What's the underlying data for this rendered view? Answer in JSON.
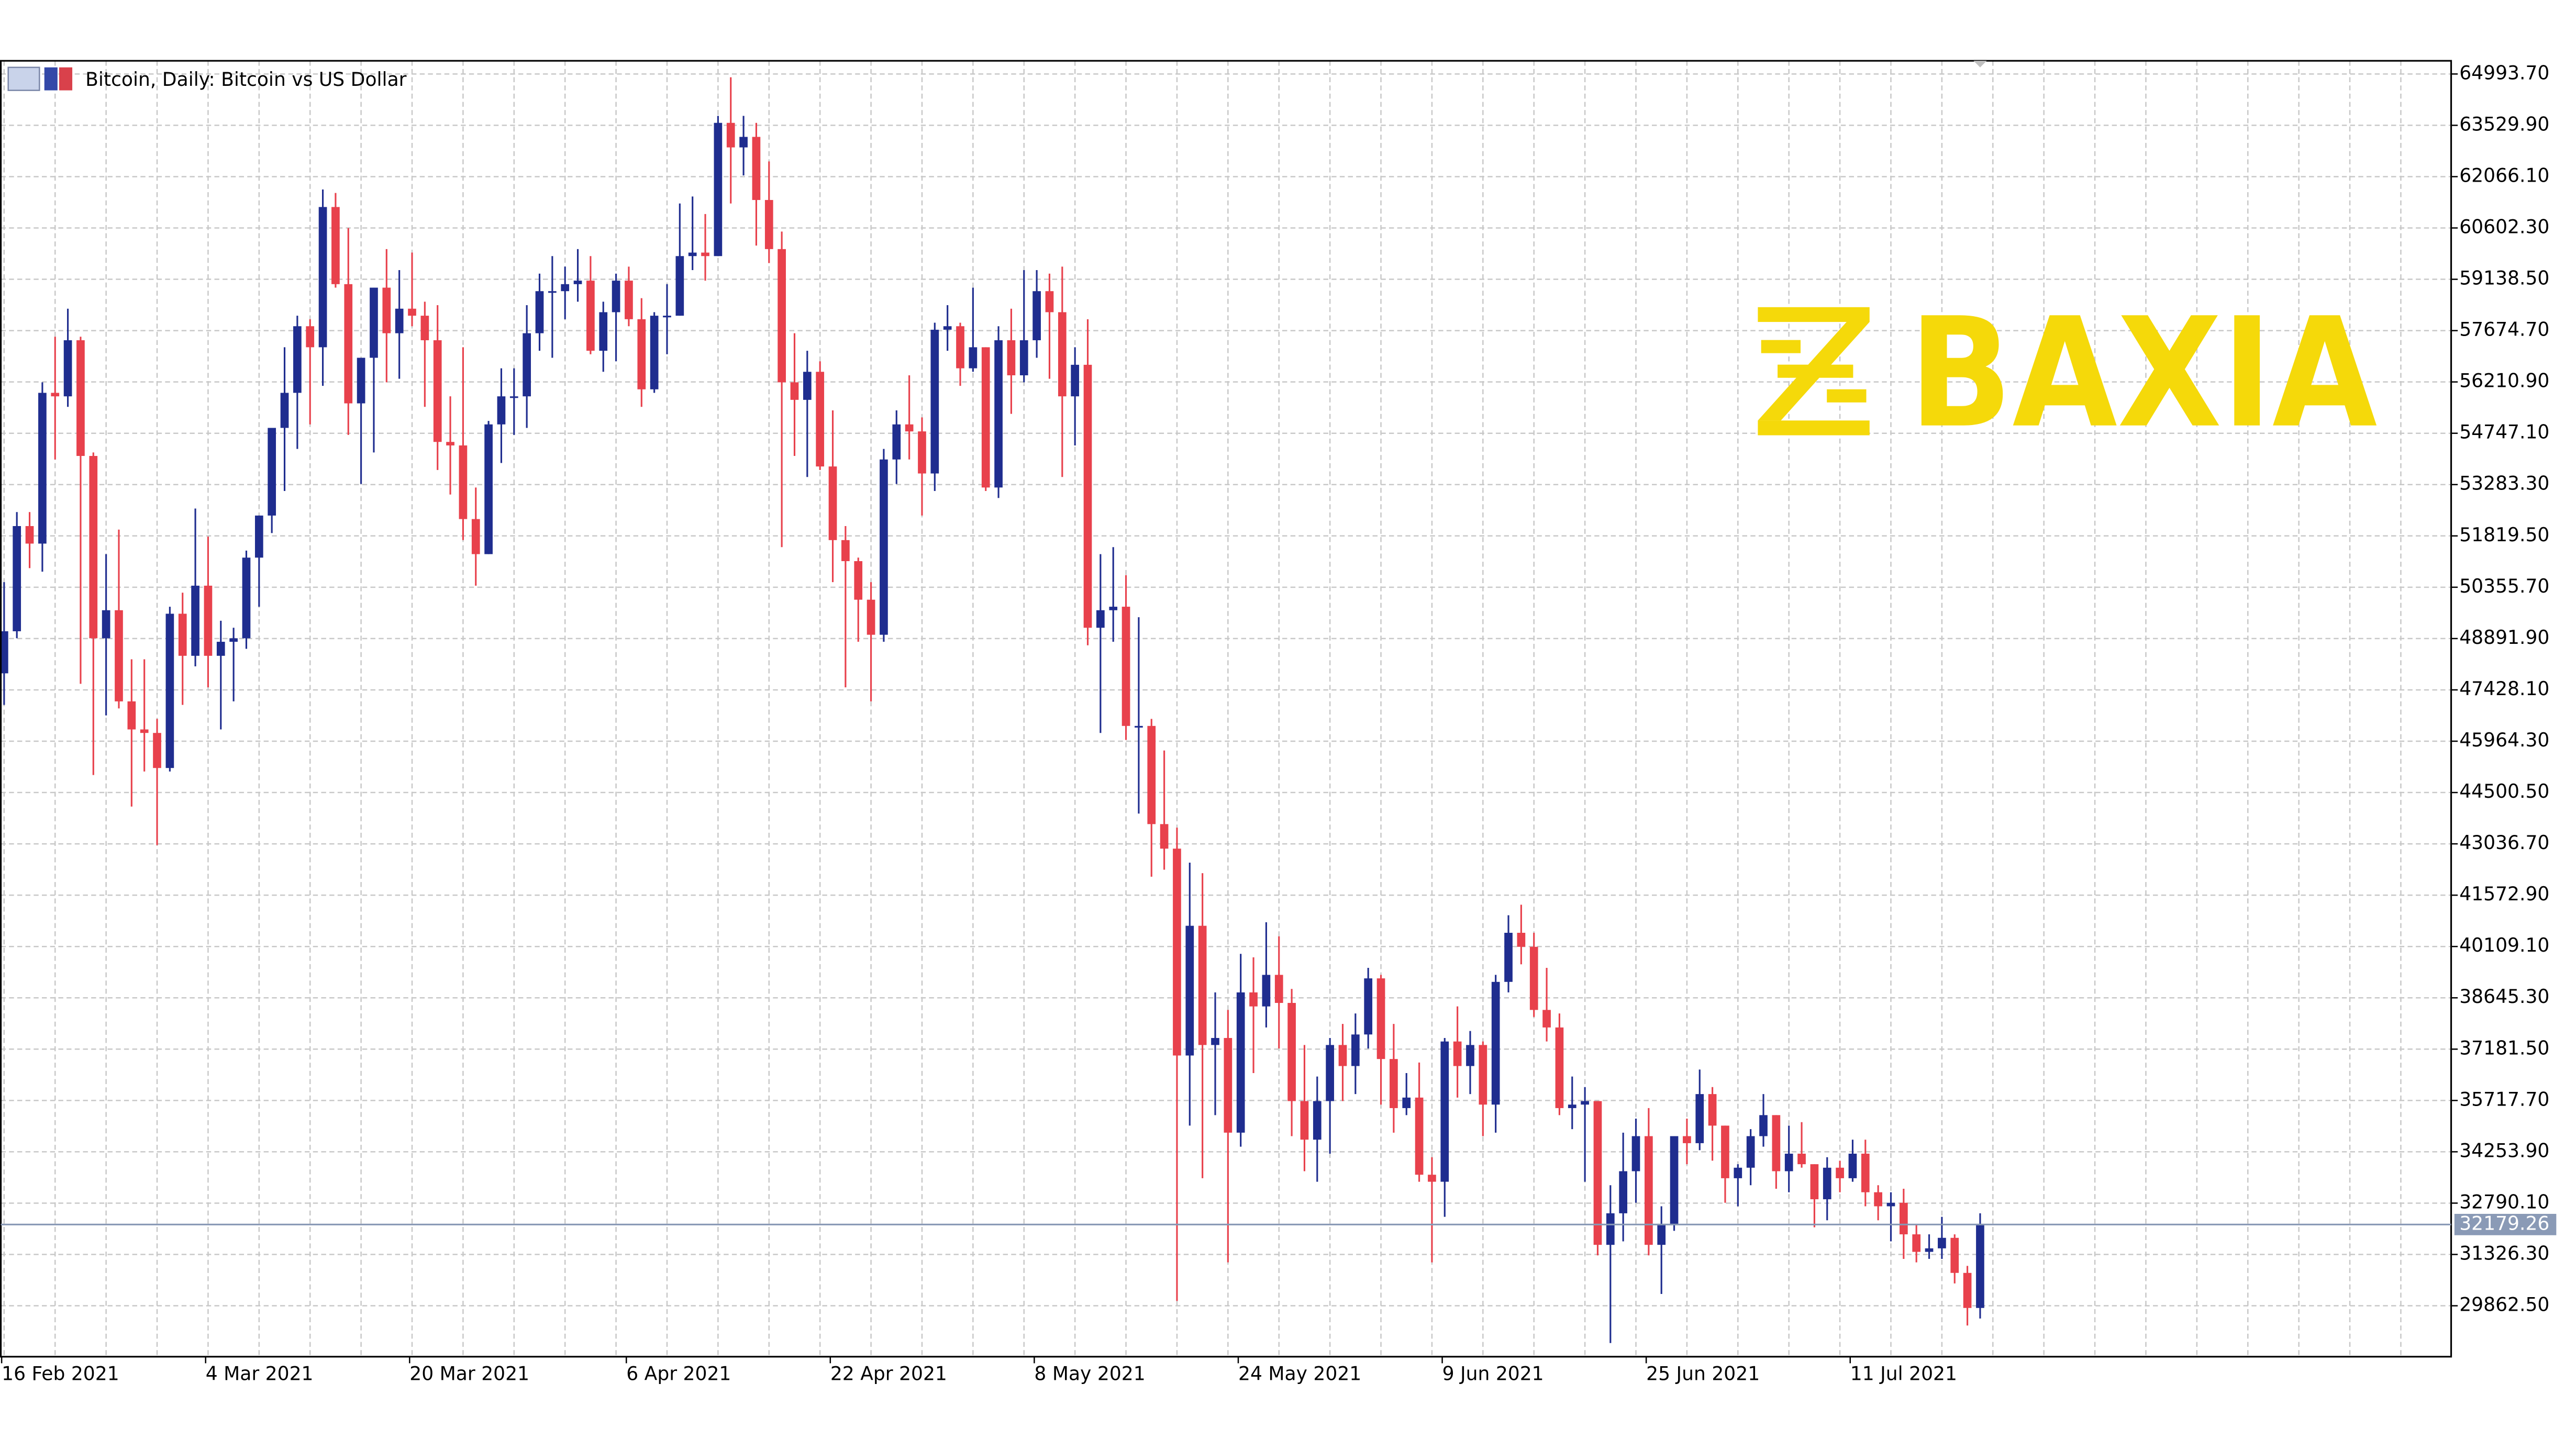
{
  "logo": "BAXIA",
  "chart_data": {
    "type": "candlestick",
    "title": "Bitcoin, Daily:  Bitcoin vs US Dollar",
    "up_color": "#1f2d8f",
    "down_color": "#e8414c",
    "grid": true,
    "categories": [
      "16 Feb 2021",
      null,
      null,
      null,
      null,
      null,
      null,
      null,
      null,
      null,
      null,
      null,
      null,
      null,
      null,
      null,
      "4 Mar 2021",
      null,
      null,
      null,
      null,
      null,
      null,
      null,
      null,
      null,
      null,
      null,
      null,
      null,
      null,
      null,
      "20 Mar 2021",
      null,
      null,
      null,
      null,
      null,
      null,
      null,
      null,
      null,
      null,
      null,
      null,
      null,
      null,
      null,
      null,
      "6 Apr 2021",
      null,
      null,
      null,
      null,
      null,
      null,
      null,
      null,
      null,
      null,
      null,
      null,
      null,
      null,
      null,
      "22 Apr 2021",
      null,
      null,
      null,
      null,
      null,
      null,
      null,
      null,
      null,
      null,
      null,
      null,
      null,
      null,
      null,
      "8 May 2021",
      null,
      null,
      null,
      null,
      null,
      null,
      null,
      null,
      null,
      null,
      null,
      null,
      null,
      null,
      null,
      "24 May 2021",
      null,
      null,
      null,
      null,
      null,
      null,
      null,
      null,
      null,
      null,
      null,
      null,
      null,
      null,
      null,
      "9 Jun 2021",
      null,
      null,
      null,
      null,
      null,
      null,
      null,
      null,
      null,
      null,
      null,
      null,
      null,
      null,
      null,
      "25 Jun 2021",
      null,
      null,
      null,
      null,
      null,
      null,
      null,
      null,
      null,
      null,
      null,
      null,
      null,
      null,
      null,
      "11 Jul 2021",
      null,
      null,
      null,
      null,
      null,
      null,
      null,
      null,
      null,
      null
    ],
    "open": [
      47900,
      49100,
      52100,
      51600,
      55900,
      55800,
      57400,
      54100,
      48900,
      49700,
      47100,
      46300,
      46200,
      45200,
      49600,
      48400,
      50400,
      48400,
      48800,
      48900,
      51200,
      52400,
      54900,
      55900,
      57800,
      57200,
      61200,
      59000,
      55600,
      56900,
      58900,
      57600,
      58300,
      58100,
      57400,
      54500,
      54400,
      52300,
      51300,
      55000,
      55800,
      55800,
      57600,
      58800,
      58800,
      59000,
      59100,
      57100,
      58200,
      59100,
      58000,
      56000,
      58100,
      58100,
      59800,
      59900,
      59800,
      63600,
      62900,
      63200,
      61400,
      60000,
      56200,
      55700,
      56500,
      53800,
      51700,
      51100,
      50000,
      49000,
      54000,
      55000,
      54800,
      53600,
      57700,
      57800,
      56600,
      57200,
      53200,
      57400,
      56400,
      57400,
      58800,
      58200,
      55800,
      56700,
      49200,
      49700,
      49800,
      46400,
      46400,
      43600,
      42900,
      37000,
      40700,
      37300,
      37500,
      34800,
      38800,
      38400,
      39300,
      38500,
      35700,
      34600,
      35700,
      37300,
      36700,
      37600,
      39200,
      36900,
      35500,
      35800,
      33600,
      33400,
      37400,
      36700,
      37300,
      35600,
      39100,
      40500,
      40100,
      38300,
      37800,
      35500,
      35600,
      35700,
      31600,
      32500,
      33700,
      34700,
      31600,
      32200,
      34700,
      34500,
      35900,
      35000,
      33500,
      33800,
      34700,
      35300,
      33700,
      34200,
      33900,
      32900,
      33800,
      33500,
      34200,
      33100,
      32700,
      32800,
      31900,
      31400,
      31500,
      31800,
      30800,
      29800
    ],
    "high": [
      50500,
      52500,
      52500,
      56200,
      57500,
      58300,
      57500,
      54200,
      51300,
      52000,
      48300,
      48300,
      46600,
      49800,
      50200,
      52600,
      51800,
      49400,
      49200,
      51400,
      52400,
      54900,
      57200,
      58100,
      58000,
      61700,
      61600,
      60600,
      56900,
      58900,
      60000,
      59400,
      59900,
      58500,
      58400,
      55800,
      57200,
      53200,
      55100,
      56600,
      56600,
      58400,
      59300,
      59800,
      59500,
      60000,
      59800,
      58500,
      59300,
      59500,
      58600,
      58200,
      59000,
      61300,
      61500,
      61000,
      63800,
      64900,
      63800,
      63600,
      62500,
      60500,
      57600,
      57100,
      56800,
      55400,
      52100,
      51200,
      50500,
      54300,
      55400,
      56400,
      55200,
      57900,
      58400,
      57900,
      58900,
      57200,
      57800,
      58300,
      59400,
      59400,
      59300,
      59500,
      57200,
      58000,
      51300,
      51500,
      50700,
      49500,
      46600,
      45700,
      43500,
      42500,
      42200,
      38800,
      38300,
      39900,
      39800,
      40800,
      40400,
      38900,
      37300,
      36400,
      37500,
      37900,
      38200,
      39500,
      39300,
      37900,
      36500,
      36800,
      34100,
      37500,
      38400,
      37700,
      37400,
      39300,
      41000,
      41300,
      40500,
      39500,
      38200,
      36400,
      36100,
      35700,
      33300,
      34800,
      35200,
      35500,
      32700,
      34700,
      35200,
      36600,
      36100,
      35000,
      33900,
      34900,
      35900,
      35300,
      35000,
      35100,
      33900,
      34100,
      34000,
      34600,
      34600,
      33300,
      33100,
      33200,
      32200,
      31900,
      32400,
      31900,
      31000,
      32500
    ],
    "low": [
      47000,
      48900,
      50900,
      50800,
      54000,
      55500,
      47600,
      45000,
      46700,
      46900,
      44100,
      45100,
      43000,
      45100,
      47000,
      48100,
      47500,
      46300,
      47100,
      48600,
      49800,
      51900,
      53100,
      54300,
      55000,
      56100,
      58900,
      54700,
      53300,
      54200,
      56200,
      56300,
      57800,
      55500,
      53700,
      53000,
      51700,
      50400,
      51300,
      53900,
      54700,
      54900,
      57100,
      56900,
      58000,
      58500,
      57000,
      56500,
      56800,
      57800,
      55500,
      55900,
      57000,
      58100,
      59400,
      59100,
      59800,
      61300,
      62100,
      60100,
      59600,
      51500,
      54100,
      53500,
      53700,
      50500,
      47500,
      48800,
      47100,
      48800,
      53300,
      54000,
      52400,
      53100,
      57100,
      56100,
      56500,
      53100,
      52900,
      55300,
      56200,
      56900,
      56300,
      53500,
      54400,
      48700,
      46200,
      48800,
      46000,
      43900,
      42100,
      42300,
      30000,
      35000,
      33500,
      35300,
      31100,
      34400,
      36500,
      37800,
      37200,
      34700,
      33700,
      33400,
      34200,
      35700,
      35900,
      37200,
      35600,
      34800,
      35300,
      33400,
      31100,
      32400,
      35800,
      35900,
      34700,
      34800,
      38800,
      39600,
      38100,
      37400,
      35300,
      34900,
      33400,
      31300,
      28800,
      31700,
      32800,
      31300,
      30200,
      32000,
      33900,
      34300,
      34000,
      32800,
      32700,
      33300,
      34400,
      33200,
      33100,
      33800,
      32100,
      32300,
      33100,
      33400,
      32700,
      32300,
      31700,
      31200,
      31100,
      31200,
      31200,
      30500,
      29300,
      29500
    ],
    "close": [
      49100,
      52100,
      51600,
      55900,
      55800,
      57400,
      54100,
      48900,
      49700,
      47100,
      46300,
      46200,
      45200,
      49600,
      48400,
      50400,
      48400,
      48800,
      48900,
      51200,
      52400,
      54900,
      55900,
      57800,
      57200,
      61200,
      59000,
      55600,
      56900,
      58900,
      57600,
      58300,
      58100,
      57400,
      54500,
      54400,
      52300,
      51300,
      55000,
      55800,
      55800,
      57600,
      58800,
      58800,
      59000,
      59100,
      57100,
      58200,
      59100,
      58000,
      56000,
      58100,
      58100,
      59800,
      59900,
      59800,
      63600,
      62900,
      63200,
      61400,
      60000,
      56200,
      55700,
      56500,
      53800,
      51700,
      51100,
      50000,
      49000,
      54000,
      55000,
      54800,
      53600,
      57700,
      57800,
      56600,
      57200,
      53200,
      57400,
      56400,
      57400,
      58800,
      58200,
      55800,
      56700,
      49200,
      49700,
      49800,
      46400,
      46400,
      43600,
      42900,
      37000,
      40700,
      37300,
      37500,
      34800,
      38800,
      38400,
      39300,
      38500,
      35700,
      34600,
      35700,
      37300,
      36700,
      37600,
      39200,
      36900,
      35500,
      35800,
      33600,
      33400,
      37400,
      36700,
      37300,
      35600,
      39100,
      40500,
      40100,
      38300,
      37800,
      35500,
      35600,
      35700,
      31600,
      32500,
      33700,
      34700,
      31600,
      32200,
      34700,
      34500,
      35900,
      35000,
      33500,
      33800,
      34700,
      35300,
      33700,
      34200,
      33900,
      32900,
      33800,
      33500,
      34200,
      33100,
      32700,
      32800,
      31900,
      31400,
      31500,
      31800,
      30800,
      29800,
      32179.26
    ],
    "ylim": [
      28410,
      65370
    ],
    "yticks": [
      {
        "value": 64993.7,
        "label": "64993.70"
      },
      {
        "value": 63529.9,
        "label": "63529.90"
      },
      {
        "value": 62066.1,
        "label": "62066.10"
      },
      {
        "value": 60602.3,
        "label": "60602.30"
      },
      {
        "value": 59138.5,
        "label": "59138.50"
      },
      {
        "value": 57674.7,
        "label": "57674.70"
      },
      {
        "value": 56210.9,
        "label": "56210.90"
      },
      {
        "value": 54747.1,
        "label": "54747.10"
      },
      {
        "value": 53283.3,
        "label": "53283.30"
      },
      {
        "value": 51819.5,
        "label": "51819.50"
      },
      {
        "value": 50355.7,
        "label": "50355.70"
      },
      {
        "value": 48891.9,
        "label": "48891.90"
      },
      {
        "value": 47428.1,
        "label": "47428.10"
      },
      {
        "value": 45964.3,
        "label": "45964.30"
      },
      {
        "value": 44500.5,
        "label": "44500.50"
      },
      {
        "value": 43036.7,
        "label": "43036.70"
      },
      {
        "value": 41572.9,
        "label": "41572.90"
      },
      {
        "value": 40109.1,
        "label": "40109.10"
      },
      {
        "value": 38645.3,
        "label": "38645.30"
      },
      {
        "value": 37181.5,
        "label": "37181.50"
      },
      {
        "value": 35717.7,
        "label": "35717.70"
      },
      {
        "value": 34253.9,
        "label": "34253.90"
      },
      {
        "value": 32790.1,
        "label": "32790.10"
      },
      {
        "value": 31326.3,
        "label": "31326.30"
      },
      {
        "value": 29862.5,
        "label": "29862.50"
      }
    ]
  }
}
